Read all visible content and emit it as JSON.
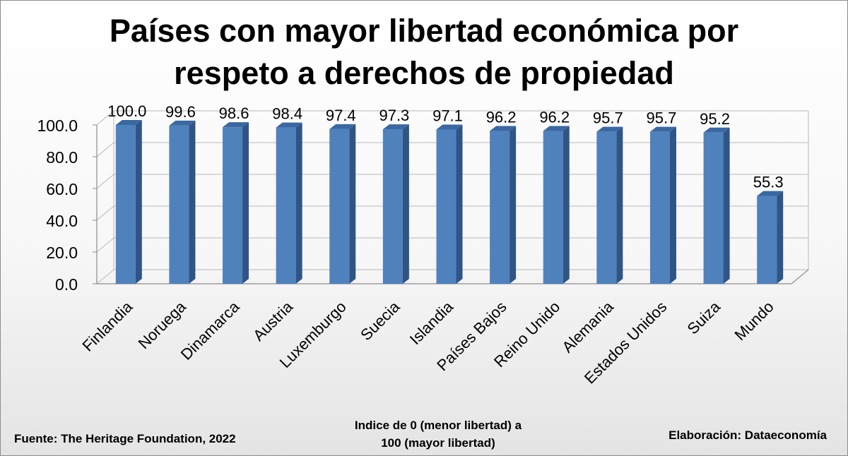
{
  "chart_data": {
    "type": "bar",
    "title": [
      "Países con mayor libertad económica por",
      "respeto a derechos de propiedad"
    ],
    "categories": [
      "Finlandia",
      "Noruega",
      "Dinamarca",
      "Austria",
      "Luxemburgo",
      "Suecia",
      "Islandia",
      "Países Bajos",
      "Reino Unido",
      "Alemania",
      "Estados Unidos",
      "Suiza",
      "Mundo"
    ],
    "values": [
      100.0,
      99.6,
      98.6,
      98.4,
      97.4,
      97.3,
      97.1,
      96.2,
      96.2,
      95.7,
      95.7,
      95.2,
      55.3
    ],
    "value_labels": [
      "100.0",
      "99.6",
      "98.6",
      "98.4",
      "97.4",
      "97.3",
      "97.1",
      "96.2",
      "96.2",
      "95.7",
      "95.7",
      "95.2",
      "55.3"
    ],
    "y_ticks": [
      "0.0",
      "20.0",
      "40.0",
      "60.0",
      "80.0",
      "100.0"
    ],
    "ylim": [
      0,
      100
    ],
    "grid": true,
    "bar_style": "3d",
    "colors": {
      "bar_front": "#4f81bd",
      "bar_side": "#2f5586",
      "bar_top": "#3a68a2",
      "grid": "#b9b9b9"
    }
  },
  "footer": {
    "source": "Fuente: The Heritage Foundation, 2022",
    "index_note_line1": "Indice de 0 (menor libertad) a",
    "index_note_line2": "100  (mayor libertad)",
    "credit": "Elaboración: Dataeconomía"
  }
}
